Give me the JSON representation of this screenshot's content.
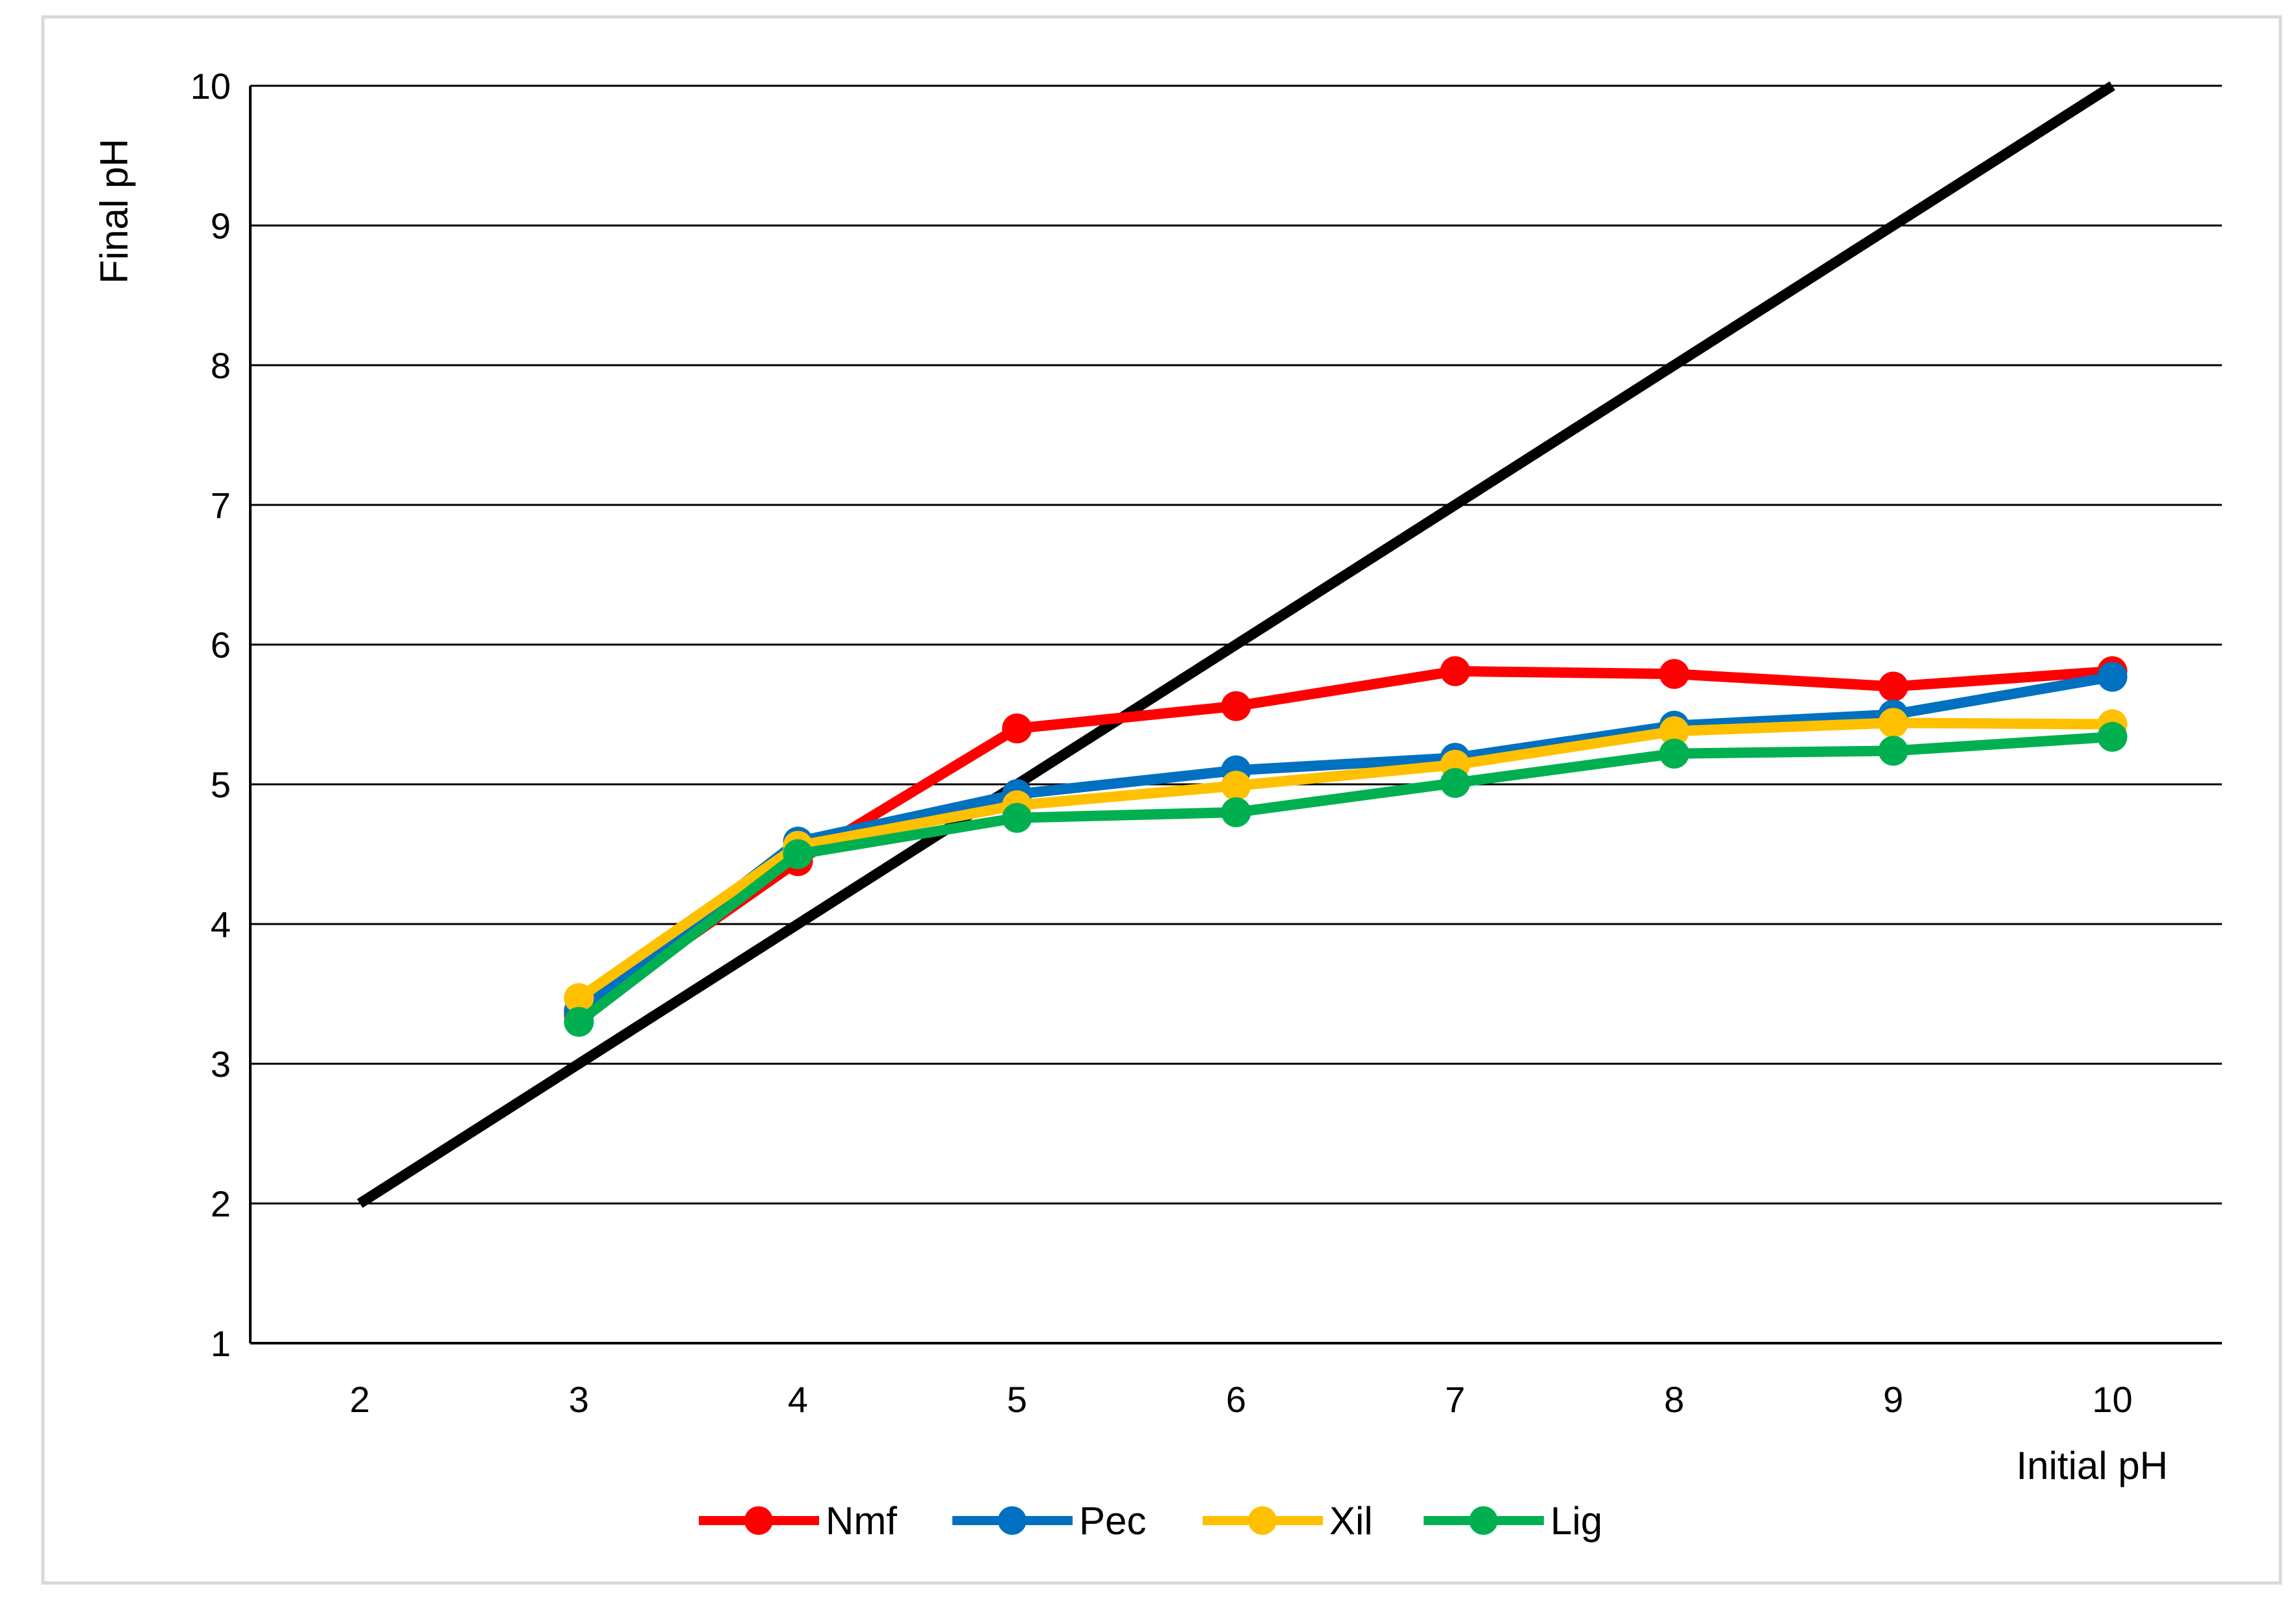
{
  "chart_data": {
    "type": "line",
    "title": "",
    "xlabel": "Initial pH",
    "ylabel": "Final pH",
    "xlim": [
      1.5,
      10.5
    ],
    "ylim": [
      1,
      10
    ],
    "x_ticks": [
      "2",
      "3",
      "4",
      "5",
      "6",
      "7",
      "8",
      "9",
      "10"
    ],
    "y_ticks": [
      "1",
      "2",
      "3",
      "4",
      "5",
      "6",
      "7",
      "8",
      "9",
      "10"
    ],
    "grid": "horizontal",
    "legend_position": "bottom",
    "reference_line": {
      "x": [
        2,
        10
      ],
      "y": [
        2,
        10
      ],
      "color": "#000000"
    },
    "series": [
      {
        "name": "Nmf",
        "color": "#ff0000",
        "x": [
          3,
          4,
          5,
          6,
          7,
          8,
          9,
          10
        ],
        "y": [
          3.35,
          4.45,
          5.4,
          5.56,
          5.81,
          5.79,
          5.7,
          5.81
        ]
      },
      {
        "name": "Pec",
        "color": "#0070c0",
        "x": [
          3,
          4,
          5,
          6,
          7,
          8,
          9,
          10
        ],
        "y": [
          3.38,
          4.59,
          4.93,
          5.1,
          5.19,
          5.42,
          5.5,
          5.77
        ]
      },
      {
        "name": "Xil",
        "color": "#ffc000",
        "x": [
          3,
          4,
          5,
          6,
          7,
          8,
          9,
          10
        ],
        "y": [
          3.47,
          4.56,
          4.85,
          4.99,
          5.14,
          5.38,
          5.44,
          5.43
        ]
      },
      {
        "name": "Lig",
        "color": "#00b050",
        "x": [
          3,
          4,
          5,
          6,
          7,
          8,
          9,
          10
        ],
        "y": [
          3.3,
          4.5,
          4.76,
          4.8,
          5.01,
          5.22,
          5.24,
          5.34
        ]
      }
    ]
  }
}
